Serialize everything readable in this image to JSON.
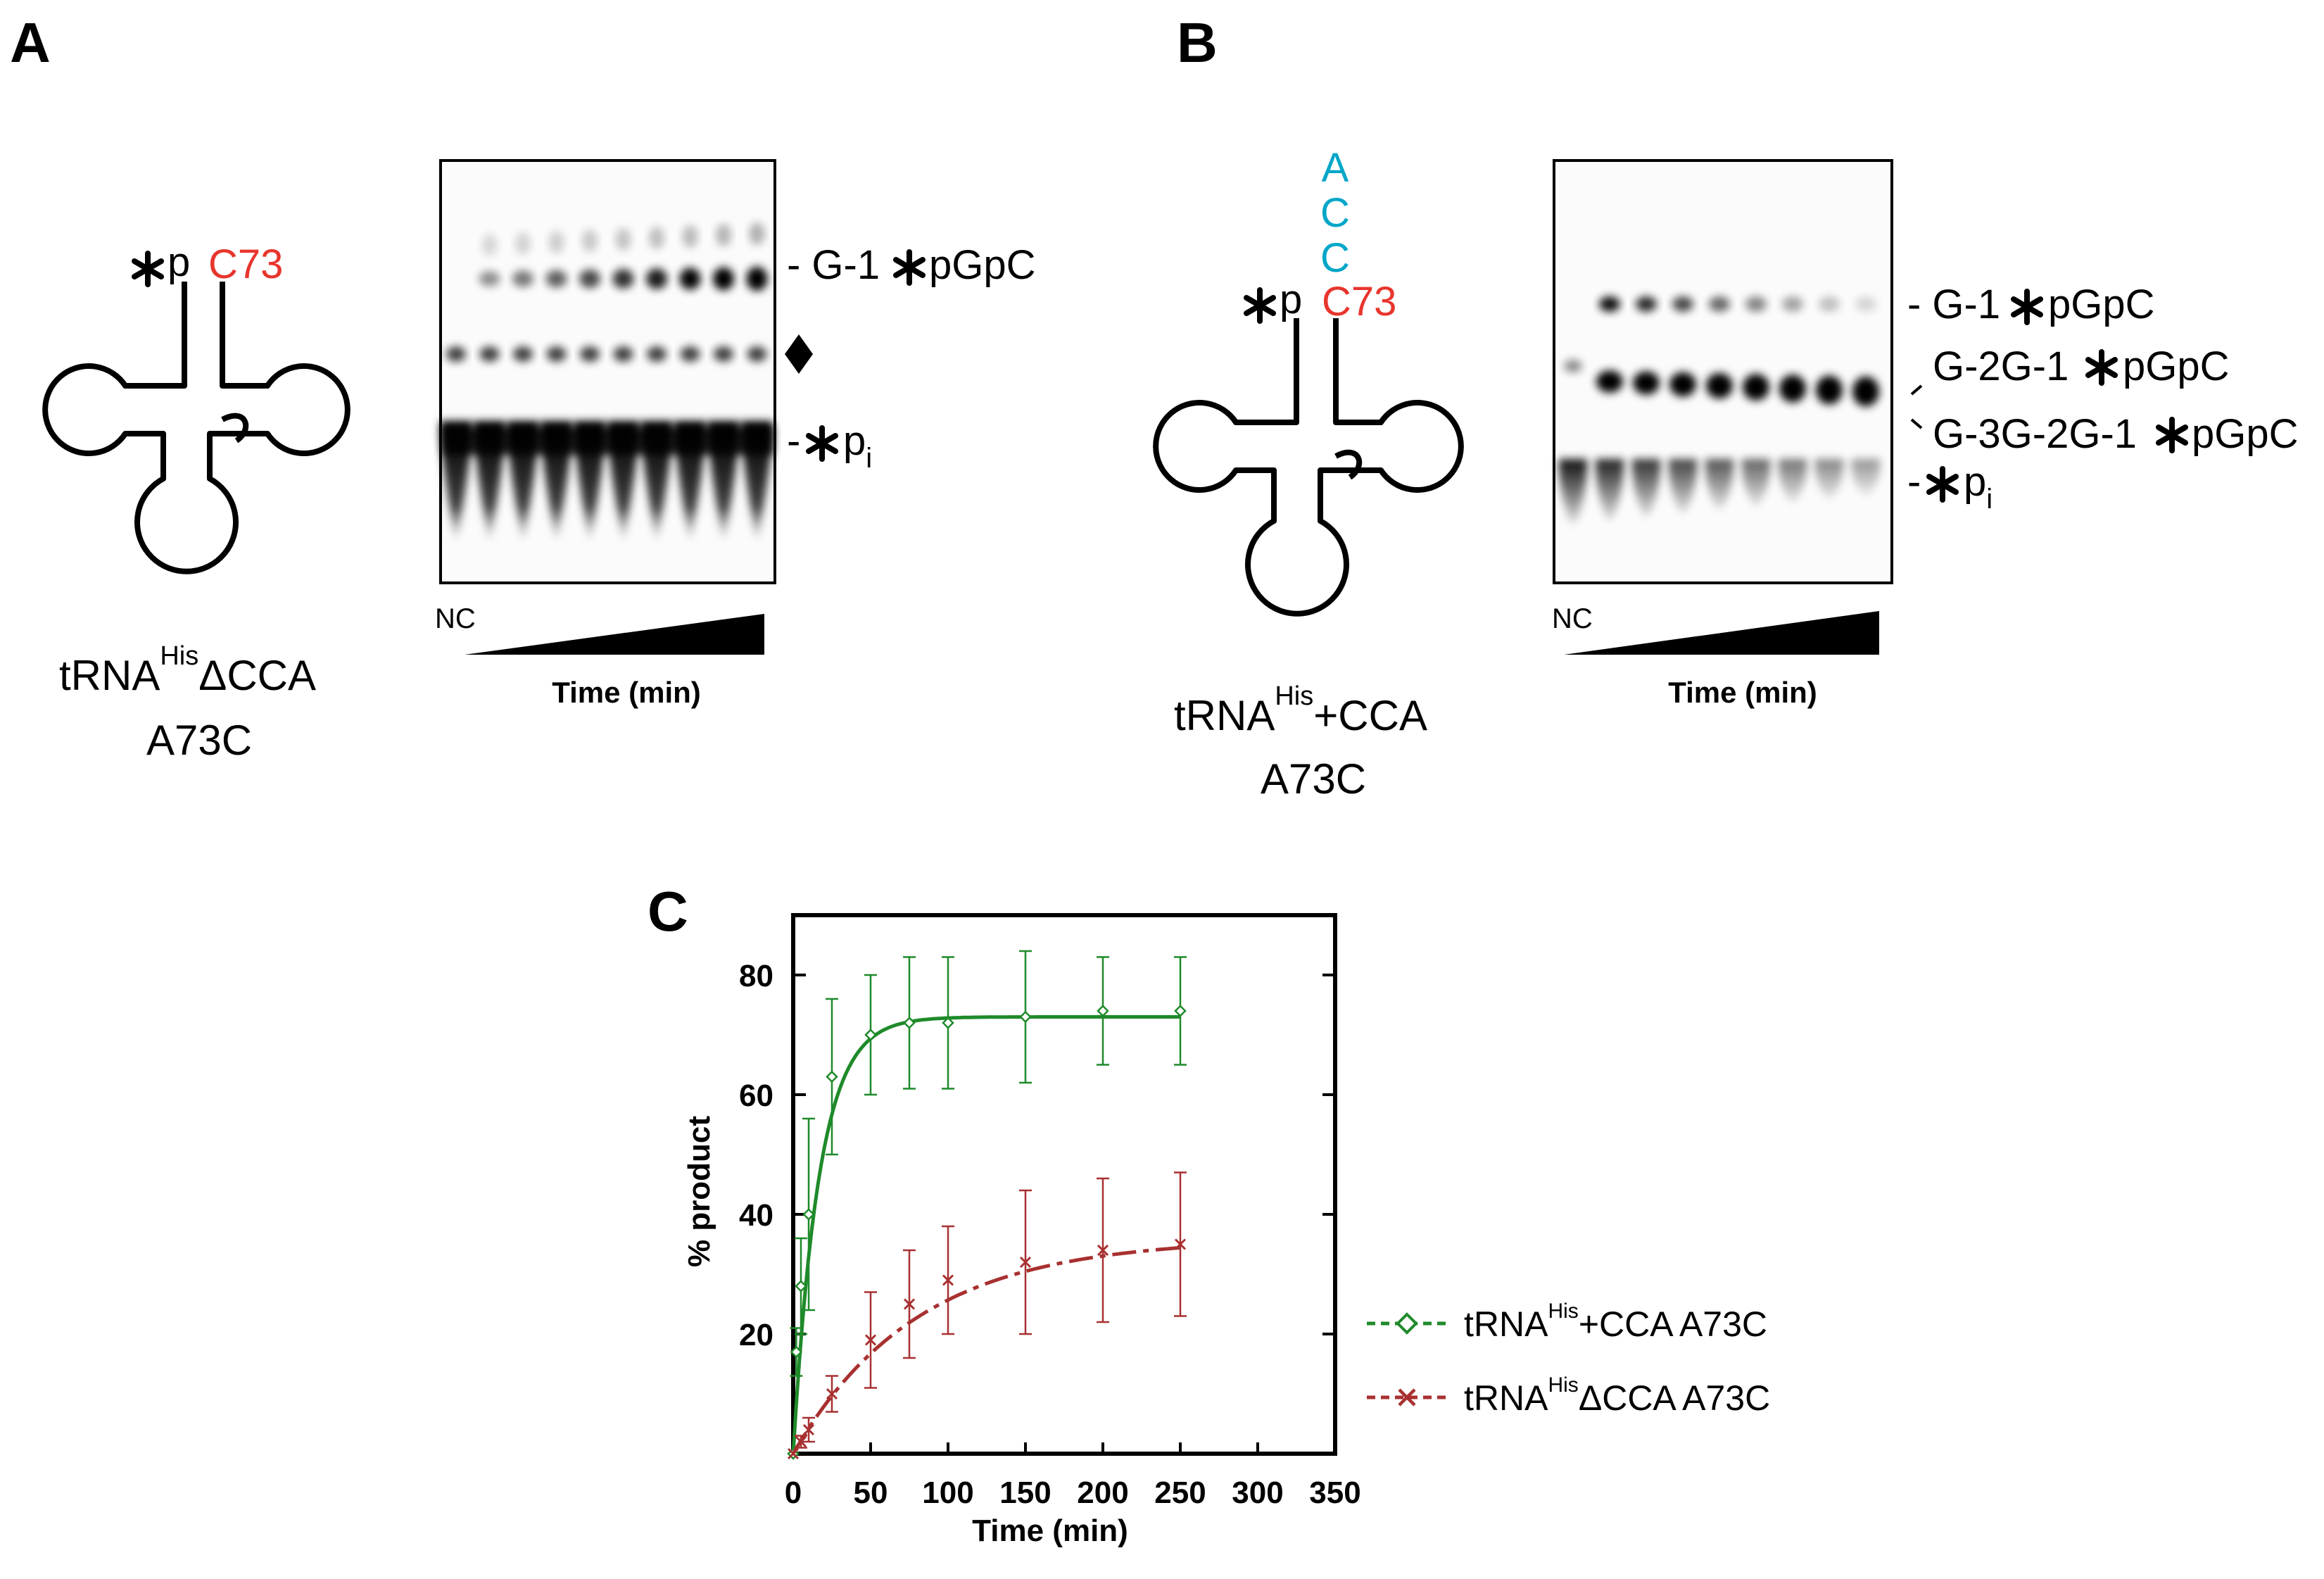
{
  "panelA": {
    "letter": "A",
    "label_p": "p",
    "label_c73": "C73",
    "name_trna": "tRNA",
    "name_his": "His",
    "name_suffix": "ΔCCA",
    "name_line2": "A73C",
    "nc": "NC",
    "xlabel": "Time (min)",
    "band1_prefix": "- G-1",
    "band1_suffix": "pGpC",
    "pi_prefix": "-",
    "pi_p": "p",
    "pi_sub": "i",
    "lane_count": 10
  },
  "panelB": {
    "letter": "B",
    "acc": [
      "A",
      "C",
      "C"
    ],
    "label_p": "p",
    "label_c73": "C73",
    "name_trna": "tRNA",
    "name_his": "His",
    "name_suffix": "+CCA",
    "name_line2": "A73C",
    "nc": "NC",
    "xlabel": "Time (min)",
    "band1_prefix": "- G-1",
    "band1_suffix": "pGpC",
    "band2_prefix": "G-2G-1",
    "band2_suffix": "pGpC",
    "band3_prefix": "G-3G-2G-1",
    "band3_suffix": "pGpC",
    "pi_prefix": "-",
    "pi_p": "p",
    "pi_sub": "i",
    "lane_count": 9
  },
  "colors": {
    "red_label": "#e8352d",
    "cyan_label": "#00a6c8",
    "green_series": "#1f8a2a",
    "red_series": "#a83030"
  },
  "chart_data": {
    "letter": "C",
    "type": "scatter",
    "xlabel": "Time (min)",
    "ylabel": "% product",
    "xlim": [
      0,
      350
    ],
    "ylim": [
      0,
      90
    ],
    "xticks": [
      0,
      50,
      100,
      150,
      200,
      250,
      300,
      350
    ],
    "yticks": [
      20,
      40,
      60,
      80
    ],
    "legend_position": "right",
    "series": [
      {
        "legend_prefix": "tRNA",
        "legend_sup": "His",
        "legend_suffix": "+CCA A73C",
        "marker": "diamond",
        "color": "#1f8a2a",
        "x": [
          0,
          2,
          5,
          10,
          25,
          50,
          75,
          100,
          150,
          200,
          250
        ],
        "y": [
          0,
          17,
          28,
          40,
          63,
          70,
          72,
          72,
          73,
          74,
          74
        ],
        "err": [
          0,
          4,
          8,
          16,
          13,
          10,
          11,
          11,
          11,
          9,
          9
        ]
      },
      {
        "legend_prefix": "tRNA",
        "legend_sup": "His",
        "legend_suffix": "ΔCCA A73C",
        "marker": "x",
        "color": "#a83030",
        "x": [
          0,
          5,
          10,
          25,
          50,
          75,
          100,
          150,
          200,
          250
        ],
        "y": [
          0,
          2,
          4,
          10,
          19,
          25,
          29,
          32,
          34,
          35
        ],
        "err": [
          0,
          1,
          2,
          3,
          8,
          9,
          9,
          12,
          12,
          12
        ]
      }
    ]
  }
}
